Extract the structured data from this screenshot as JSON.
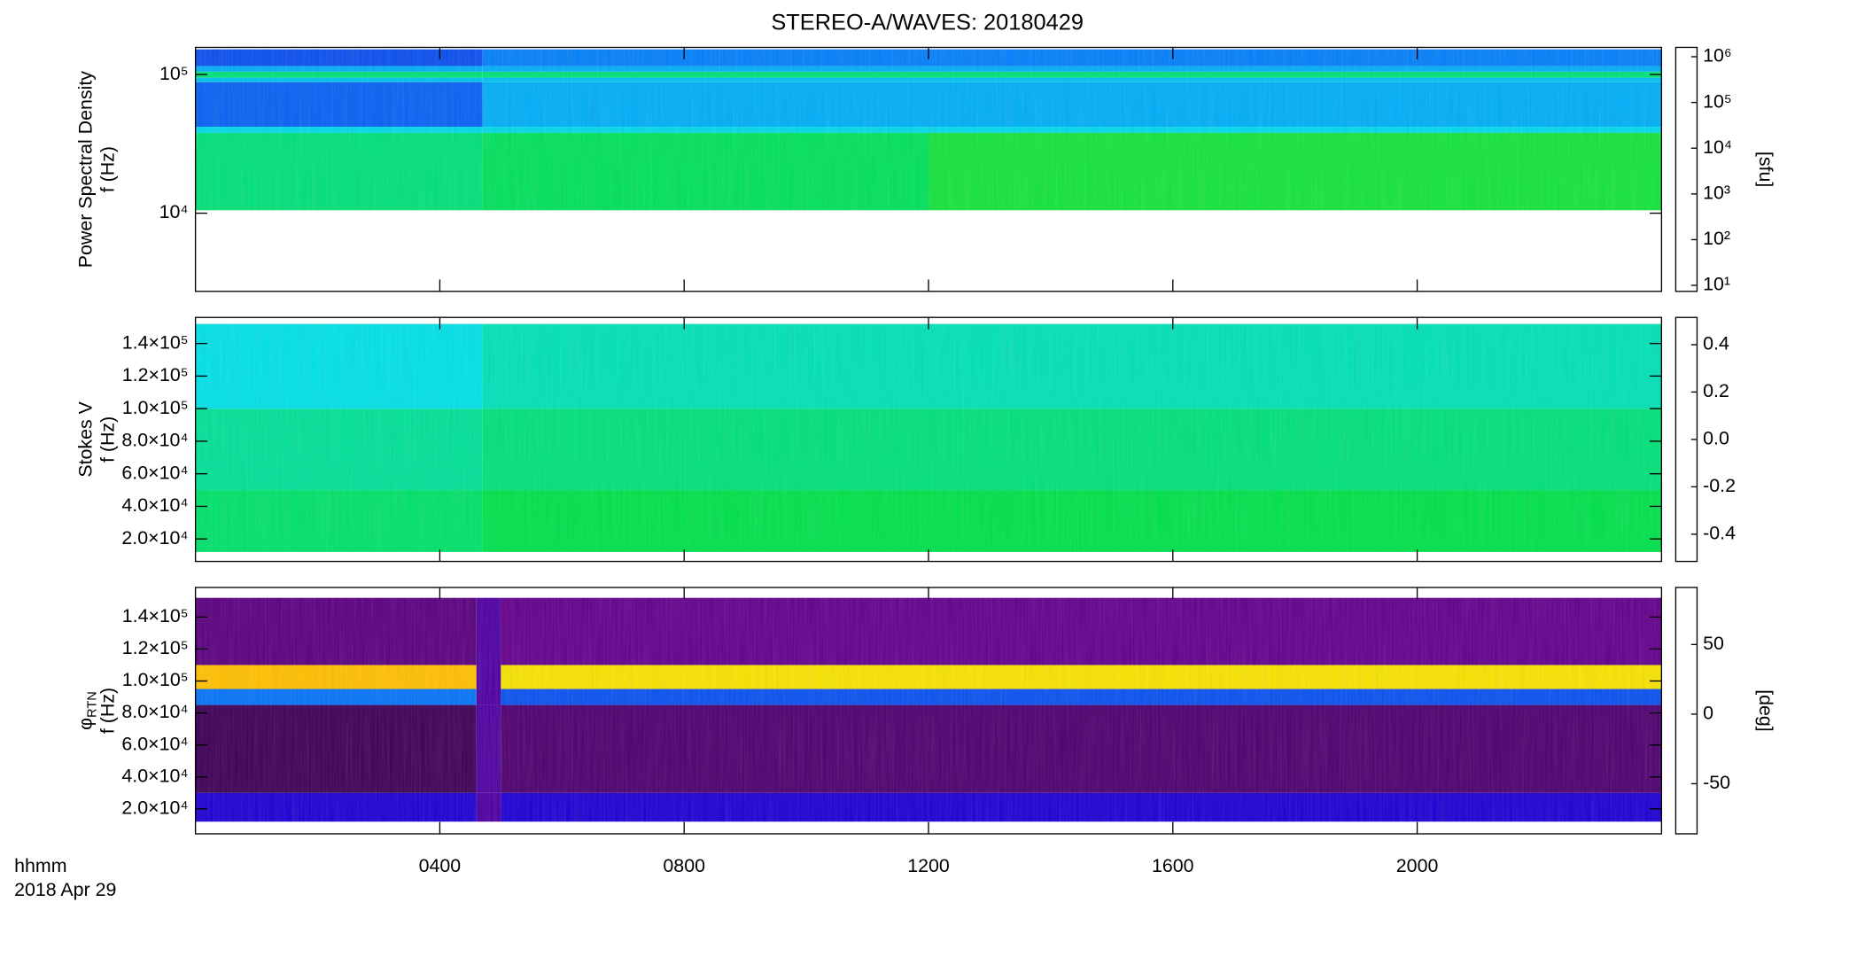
{
  "chart_data": [
    {
      "type": "heatmap",
      "title": "STEREO-A/WAVES: 20180429",
      "ylabel": [
        "Power Spectral Density",
        "f (Hz)"
      ],
      "xlim": [
        0,
        24
      ],
      "xticks": [
        4,
        8,
        12,
        16,
        20
      ],
      "ylim": [
        2730,
        157000
      ],
      "ylog": true,
      "yticks": [
        {
          "value": 10000,
          "label": "10⁴"
        },
        {
          "value": 100000,
          "label": "10⁵"
        }
      ],
      "x_edges": [
        0,
        4.7,
        12,
        24
      ],
      "y_edges": [
        10500,
        38000,
        42000,
        88000,
        95000,
        105000,
        115000,
        152000
      ],
      "values": [
        [
          8000,
          10000,
          15000
        ],
        [
          3000,
          3000,
          3000
        ],
        [
          600,
          1500,
          1500
        ],
        [
          2000,
          2000,
          2000
        ],
        [
          8000,
          8000,
          8000
        ],
        [
          1500,
          1500,
          1500
        ],
        [
          500,
          800,
          800
        ]
      ],
      "colorbar": {
        "lim": [
          7.4,
          1600000
        ],
        "log": true,
        "label": "[sfu]",
        "ticks": [
          {
            "value": 10,
            "label": "10¹"
          },
          {
            "value": 100,
            "label": "10²"
          },
          {
            "value": 1000,
            "label": "10³"
          },
          {
            "value": 10000,
            "label": "10⁴"
          },
          {
            "value": 100000,
            "label": "10⁵"
          },
          {
            "value": 1000000,
            "label": "10⁶"
          }
        ]
      }
    },
    {
      "type": "heatmap",
      "ylabel": [
        "Stokes V",
        "f (Hz)"
      ],
      "xlim": [
        0,
        24
      ],
      "xticks": [
        4,
        8,
        12,
        16,
        20
      ],
      "ylim": [
        6200,
        156000
      ],
      "ylog": false,
      "yticks": [
        {
          "value": 20000,
          "label": "2.0×10⁴"
        },
        {
          "value": 40000,
          "label": "4.0×10⁴"
        },
        {
          "value": 60000,
          "label": "6.0×10⁴"
        },
        {
          "value": 80000,
          "label": "8.0×10⁴"
        },
        {
          "value": 100000,
          "label": "1.0×10⁵"
        },
        {
          "value": 120000,
          "label": "1.2×10⁵"
        },
        {
          "value": 140000,
          "label": "1.4×10⁵"
        }
      ],
      "x_edges": [
        0,
        4.7,
        24
      ],
      "y_edges": [
        12000,
        50000,
        100000,
        152000
      ],
      "values": [
        [
          0.08,
          0.1
        ],
        [
          0.05,
          0.07
        ],
        [
          0.0,
          0.03
        ]
      ],
      "colorbar": {
        "lim": [
          -0.515,
          0.515
        ],
        "log": false,
        "ticks": [
          {
            "value": -0.4,
            "label": "-0.4"
          },
          {
            "value": -0.2,
            "label": "-0.2"
          },
          {
            "value": 0,
            "label": "0.0"
          },
          {
            "value": 0.2,
            "label": "0.2"
          },
          {
            "value": 0.4,
            "label": "0.4"
          }
        ]
      }
    },
    {
      "type": "heatmap",
      "ylabel": [
        "f (Hz)"
      ],
      "ylabel_symbol": "φ",
      "ylabel_subscript": "RTN",
      "xlabel": "hhmm",
      "date_label": "2018 Apr 29",
      "xlim": [
        0,
        24
      ],
      "xticks": [
        {
          "value": 4,
          "label": "0400"
        },
        {
          "value": 8,
          "label": "0800"
        },
        {
          "value": 12,
          "label": "1200"
        },
        {
          "value": 16,
          "label": "1600"
        },
        {
          "value": 20,
          "label": "2000"
        }
      ],
      "ylim": [
        4400,
        158500
      ],
      "ylog": false,
      "yticks": [
        {
          "value": 20000,
          "label": "2.0×10⁴"
        },
        {
          "value": 40000,
          "label": "4.0×10⁴"
        },
        {
          "value": 60000,
          "label": "6.0×10⁴"
        },
        {
          "value": 80000,
          "label": "8.0×10⁴"
        },
        {
          "value": 100000,
          "label": "1.0×10⁵"
        },
        {
          "value": 120000,
          "label": "1.2×10⁵"
        },
        {
          "value": 140000,
          "label": "1.4×10⁵"
        }
      ],
      "x_edges": [
        0,
        4.6,
        5.0,
        24
      ],
      "y_edges": [
        12000,
        30000,
        85000,
        95000,
        110000,
        152000
      ],
      "values": [
        [
          -40,
          -60,
          -40
        ],
        [
          -75,
          -60,
          -72
        ],
        [
          -20,
          -60,
          -25
        ],
        [
          70,
          -60,
          65
        ],
        [
          -70,
          -60,
          -68
        ]
      ],
      "colorbar": {
        "lim": [
          -86,
          91
        ],
        "log": false,
        "label": "[deg]",
        "ticks": [
          -50,
          0,
          50
        ]
      }
    }
  ]
}
